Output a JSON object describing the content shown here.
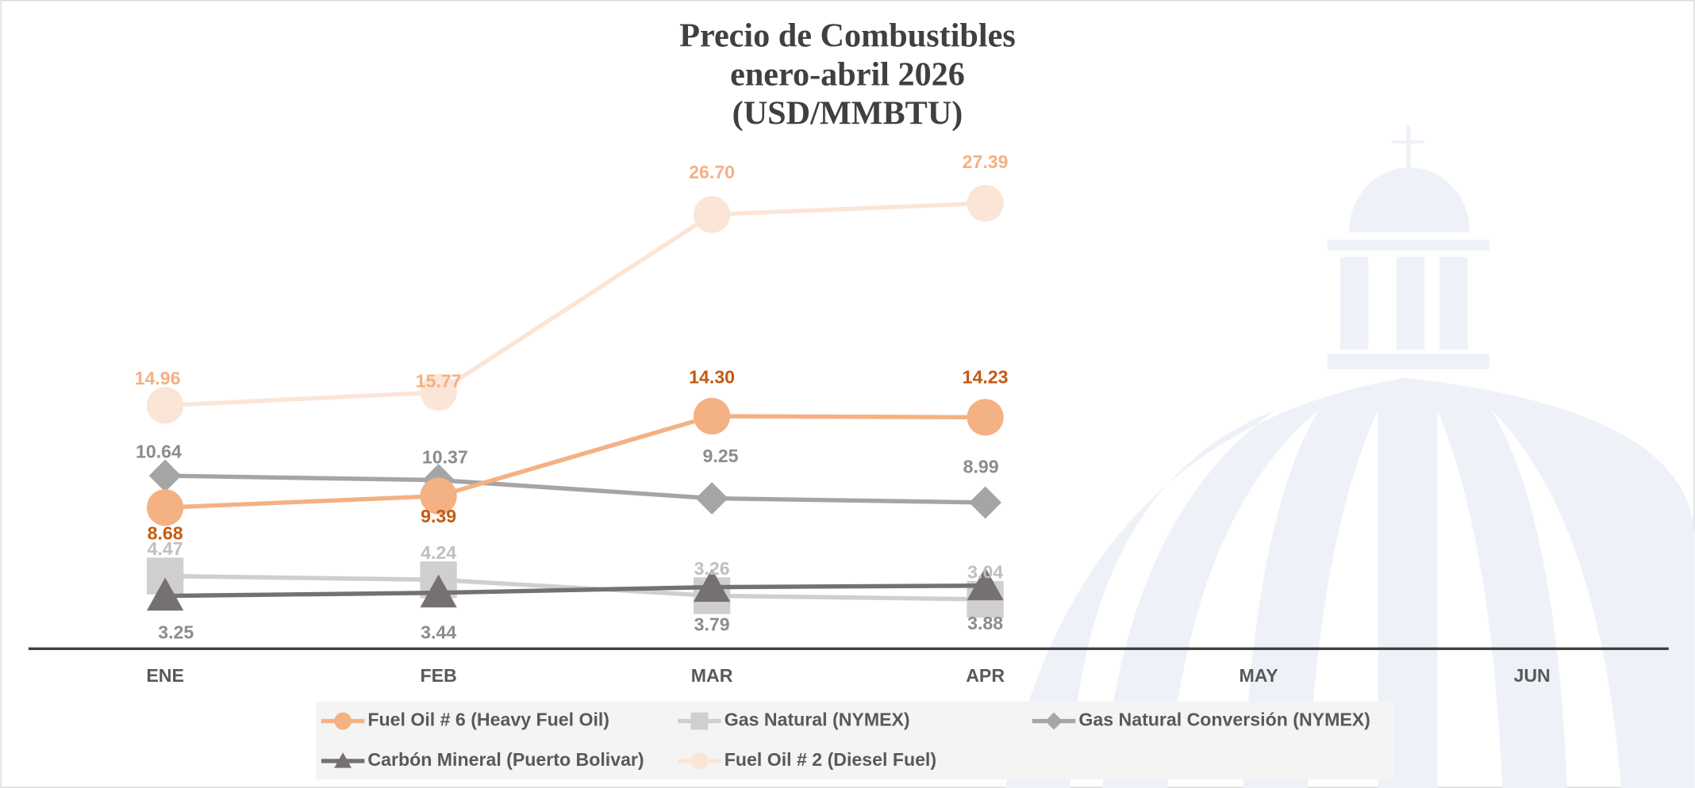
{
  "chart_data": {
    "type": "line",
    "title": [
      "Precio de Combustibles",
      "enero-abril 2026",
      "(USD/MMBTU)"
    ],
    "categories": [
      "ENE",
      "FEB",
      "MAR",
      "APR",
      "MAY",
      "JUN"
    ],
    "ylim": [
      0,
      30
    ],
    "series": [
      {
        "name": "Fuel Oil # 6 (Heavy Fuel Oil)",
        "color": "#f4b183",
        "label_color": "#c55a11",
        "marker": "circle",
        "values": [
          8.68,
          9.39,
          14.3,
          14.23,
          null,
          null
        ],
        "value_labels": [
          "8.68",
          "9.39",
          "14.30",
          "14.23",
          null,
          null
        ]
      },
      {
        "name": "Gas Natural (NYMEX)",
        "color": "#d0cece",
        "label_color": "#bfbfbf",
        "marker": "square",
        "values": [
          4.47,
          4.24,
          3.26,
          3.04,
          null,
          null
        ],
        "value_labels": [
          "4.47",
          "4.24",
          "3.26",
          "3.04",
          null,
          null
        ]
      },
      {
        "name": "Gas Natural Conversión (NYMEX)",
        "color": "#a5a5a5",
        "label_color": "#8c8c8c",
        "marker": "diamond",
        "values": [
          10.64,
          10.37,
          9.25,
          8.99,
          null,
          null
        ],
        "value_labels": [
          "10.64",
          "10.37",
          "9.25",
          "8.99",
          null,
          null
        ]
      },
      {
        "name": "Carbón Mineral (Puerto Bolivar)",
        "color": "#767171",
        "label_color": "#8c8c8c",
        "marker": "triangle",
        "values": [
          3.25,
          3.44,
          3.79,
          3.88,
          null,
          null
        ],
        "value_labels": [
          "3.25",
          "3.44",
          "3.79",
          "3.88",
          null,
          null
        ]
      },
      {
        "name": "Fuel Oil # 2 (Diesel Fuel)",
        "color": "#fbe5d6",
        "label_color": "#f4b183",
        "marker": "circle",
        "values": [
          14.96,
          15.77,
          26.7,
          27.39,
          null,
          null
        ],
        "value_labels": [
          "14.96",
          "15.77",
          "26.70",
          "27.39",
          null,
          null
        ]
      }
    ]
  }
}
